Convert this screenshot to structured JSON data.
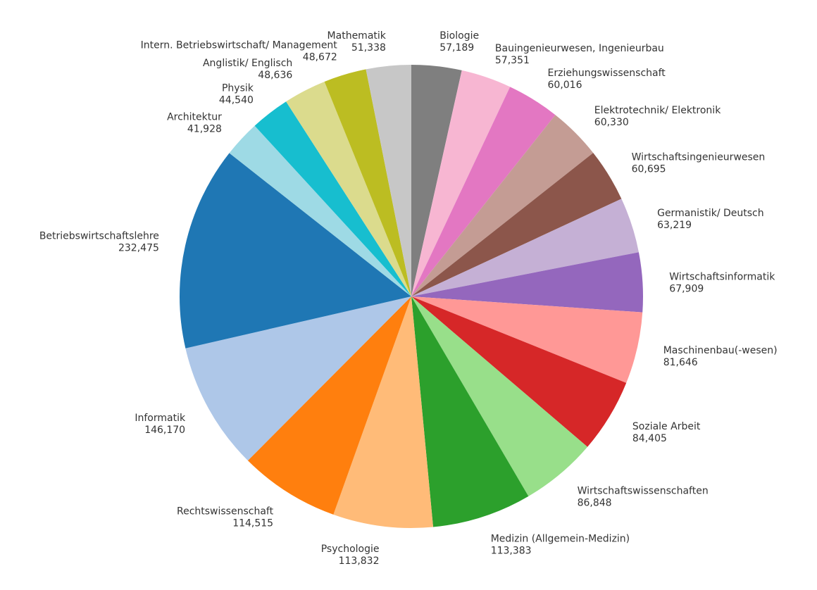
{
  "chart_data": {
    "type": "pie",
    "title": "",
    "start_angle_deg": 90,
    "direction": "clockwise",
    "slices": [
      {
        "label": "Biologie",
        "value": 57189,
        "value_text": "57,189",
        "color": "#7f7f7f"
      },
      {
        "label": "Bauingenieurwesen, Ingenieurbau",
        "value": 57351,
        "value_text": "57,351",
        "color": "#f7b6d2"
      },
      {
        "label": "Erziehungswissenschaft",
        "value": 60016,
        "value_text": "60,016",
        "color": "#e377c2"
      },
      {
        "label": "Elektrotechnik/ Elektronik",
        "value": 60330,
        "value_text": "60,330",
        "color": "#c49c94"
      },
      {
        "label": "Wirtschaftsingenieurwesen",
        "value": 60695,
        "value_text": "60,695",
        "color": "#8c564b"
      },
      {
        "label": "Germanistik/ Deutsch",
        "value": 63219,
        "value_text": "63,219",
        "color": "#c5b0d5"
      },
      {
        "label": "Wirtschaftsinformatik",
        "value": 67909,
        "value_text": "67,909",
        "color": "#9467bd"
      },
      {
        "label": "Maschinenbau(-wesen)",
        "value": 81646,
        "value_text": "81,646",
        "color": "#ff9896"
      },
      {
        "label": "Soziale Arbeit",
        "value": 84405,
        "value_text": "84,405",
        "color": "#d62728"
      },
      {
        "label": "Wirtschaftswissenschaften",
        "value": 86848,
        "value_text": "86,848",
        "color": "#98df8a"
      },
      {
        "label": "Medizin (Allgemein-Medizin)",
        "value": 113383,
        "value_text": "113,383",
        "color": "#2ca02c"
      },
      {
        "label": "Psychologie",
        "value": 113832,
        "value_text": "113,832",
        "color": "#ffbb78"
      },
      {
        "label": "Rechtswissenschaft",
        "value": 114515,
        "value_text": "114,515",
        "color": "#ff7f0e"
      },
      {
        "label": "Informatik",
        "value": 146170,
        "value_text": "146,170",
        "color": "#aec7e8"
      },
      {
        "label": "Betriebswirtschaftslehre",
        "value": 232475,
        "value_text": "232,475",
        "color": "#1f77b4"
      },
      {
        "label": "Architektur",
        "value": 41928,
        "value_text": "41,928",
        "color": "#9edae5"
      },
      {
        "label": "Physik",
        "value": 44540,
        "value_text": "44,540",
        "color": "#17becf"
      },
      {
        "label": "Anglistik/ Englisch",
        "value": 48636,
        "value_text": "48,636",
        "color": "#dbdb8d"
      },
      {
        "label": "Intern. Betriebswirtschaft/ Management",
        "value": 48672,
        "value_text": "48,672",
        "color": "#bcbd22"
      },
      {
        "label": "Mathematik",
        "value": 51338,
        "value_text": "51,338",
        "color": "#c7c7c7"
      }
    ]
  }
}
